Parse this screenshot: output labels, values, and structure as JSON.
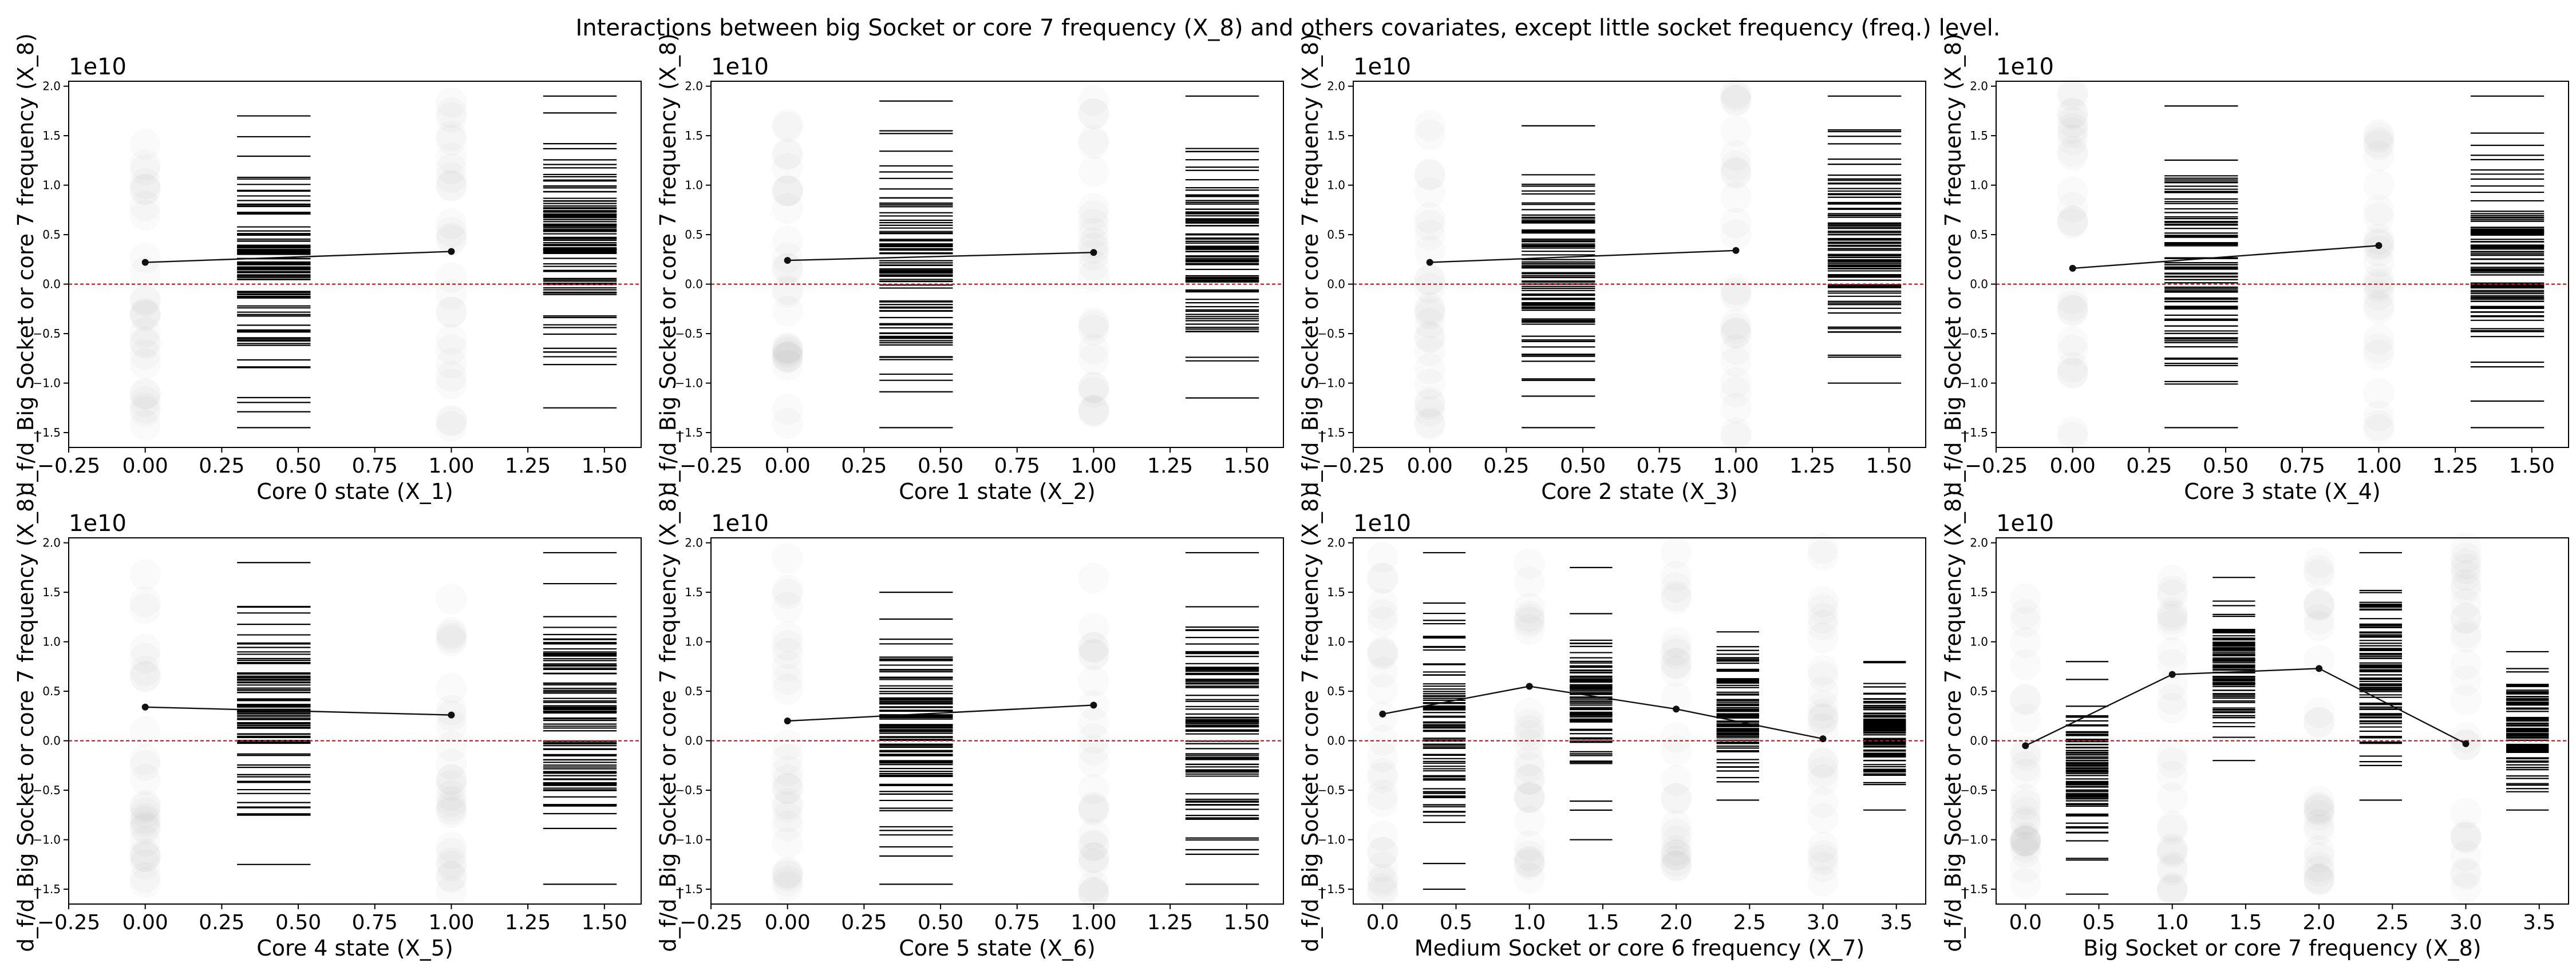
{
  "title": "Interactions between big Socket or core 7 frequency (X_8) and others covariates, except little socket frequency (freq.) level.",
  "chart_data": [
    {
      "type": "scatter",
      "xlabel": "Core 0 state (X_1)",
      "ylabel": "d_f/d_Big Socket or core 7 frequency (X_8)",
      "offset_text": "1e10",
      "xlim": [
        -0.25,
        1.62
      ],
      "ylim": [
        -1.65,
        2.05
      ],
      "xticks": [
        -0.25,
        0.0,
        0.25,
        0.5,
        0.75,
        1.0,
        1.25,
        1.5
      ],
      "xtick_labels": [
        "−0.25",
        "0.00",
        "0.25",
        "0.50",
        "0.75",
        "1.00",
        "1.25",
        "1.50"
      ],
      "yticks": [
        -1.5,
        -1.0,
        -0.5,
        0.0,
        0.5,
        1.0,
        1.5,
        2.0
      ],
      "ytick_labels": [
        "−1.5",
        "−1.0",
        "−0.5",
        "0.0",
        "0.5",
        "1.0",
        "1.5",
        "2.0"
      ],
      "reference_line": 0.0,
      "levels": [
        0,
        1
      ],
      "mean_line": [
        2.2,
        3.3
      ],
      "rug_range": [
        [
          -1.45,
          1.7
        ],
        [
          -1.25,
          1.9
        ]
      ],
      "seed": 11
    },
    {
      "type": "scatter",
      "xlabel": "Core 1 state (X_2)",
      "ylabel": "d_f/d_Big Socket or core 7 frequency (X_8)",
      "offset_text": "1e10",
      "xlim": [
        -0.25,
        1.62
      ],
      "ylim": [
        -1.65,
        2.05
      ],
      "xticks": [
        -0.25,
        0.0,
        0.25,
        0.5,
        0.75,
        1.0,
        1.25,
        1.5
      ],
      "xtick_labels": [
        "−0.25",
        "0.00",
        "0.25",
        "0.50",
        "0.75",
        "1.00",
        "1.25",
        "1.50"
      ],
      "yticks": [
        -1.5,
        -1.0,
        -0.5,
        0.0,
        0.5,
        1.0,
        1.5,
        2.0
      ],
      "ytick_labels": [
        "−1.5",
        "−1.0",
        "−0.5",
        "0.0",
        "0.5",
        "1.0",
        "1.5",
        "2.0"
      ],
      "reference_line": 0.0,
      "levels": [
        0,
        1
      ],
      "mean_line": [
        2.4,
        3.2
      ],
      "rug_range": [
        [
          -1.45,
          1.85
        ],
        [
          -1.15,
          1.9
        ]
      ],
      "seed": 23
    },
    {
      "type": "scatter",
      "xlabel": "Core 2 state (X_3)",
      "ylabel": "d_f/d_Big Socket or core 7 frequency (X_8)",
      "offset_text": "1e10",
      "xlim": [
        -0.25,
        1.62
      ],
      "ylim": [
        -1.65,
        2.05
      ],
      "xticks": [
        -0.25,
        0.0,
        0.25,
        0.5,
        0.75,
        1.0,
        1.25,
        1.5
      ],
      "xtick_labels": [
        "−0.25",
        "0.00",
        "0.25",
        "0.50",
        "0.75",
        "1.00",
        "1.25",
        "1.50"
      ],
      "yticks": [
        -1.5,
        -1.0,
        -0.5,
        0.0,
        0.5,
        1.0,
        1.5,
        2.0
      ],
      "ytick_labels": [
        "−1.5",
        "−1.0",
        "−0.5",
        "0.0",
        "0.5",
        "1.0",
        "1.5",
        "2.0"
      ],
      "reference_line": 0.0,
      "levels": [
        0,
        1
      ],
      "mean_line": [
        2.2,
        3.4
      ],
      "rug_range": [
        [
          -1.45,
          1.6
        ],
        [
          -1.0,
          1.9
        ]
      ],
      "seed": 37
    },
    {
      "type": "scatter",
      "xlabel": "Core 3 state (X_4)",
      "ylabel": "d_f/d_Big Socket or core 7 frequency (X_8)",
      "offset_text": "1e10",
      "xlim": [
        -0.25,
        1.62
      ],
      "ylim": [
        -1.65,
        2.05
      ],
      "xticks": [
        -0.25,
        0.0,
        0.25,
        0.5,
        0.75,
        1.0,
        1.25,
        1.5
      ],
      "xtick_labels": [
        "−0.25",
        "0.00",
        "0.25",
        "0.50",
        "0.75",
        "1.00",
        "1.25",
        "1.50"
      ],
      "yticks": [
        -1.5,
        -1.0,
        -0.5,
        0.0,
        0.5,
        1.0,
        1.5,
        2.0
      ],
      "ytick_labels": [
        "−1.5",
        "−1.0",
        "−0.5",
        "0.0",
        "0.5",
        "1.0",
        "1.5",
        "2.0"
      ],
      "reference_line": 0.0,
      "levels": [
        0,
        1
      ],
      "mean_line": [
        1.6,
        3.9
      ],
      "rug_range": [
        [
          -1.45,
          1.8
        ],
        [
          -1.45,
          1.9
        ]
      ],
      "seed": 41
    },
    {
      "type": "scatter",
      "xlabel": "Core 4 state (X_5)",
      "ylabel": "d_f/d_Big Socket or core 7 frequency (X_8)",
      "offset_text": "1e10",
      "xlim": [
        -0.25,
        1.62
      ],
      "ylim": [
        -1.65,
        2.05
      ],
      "xticks": [
        -0.25,
        0.0,
        0.25,
        0.5,
        0.75,
        1.0,
        1.25,
        1.5
      ],
      "xtick_labels": [
        "−0.25",
        "0.00",
        "0.25",
        "0.50",
        "0.75",
        "1.00",
        "1.25",
        "1.50"
      ],
      "yticks": [
        -1.5,
        -1.0,
        -0.5,
        0.0,
        0.5,
        1.0,
        1.5,
        2.0
      ],
      "ytick_labels": [
        "−1.5",
        "−1.0",
        "−0.5",
        "0.0",
        "0.5",
        "1.0",
        "1.5",
        "2.0"
      ],
      "reference_line": 0.0,
      "levels": [
        0,
        1
      ],
      "mean_line": [
        3.4,
        2.6
      ],
      "rug_range": [
        [
          -1.25,
          1.8
        ],
        [
          -1.45,
          1.9
        ]
      ],
      "seed": 53
    },
    {
      "type": "scatter",
      "xlabel": "Core 5 state (X_6)",
      "ylabel": "d_f/d_Big Socket or core 7 frequency (X_8)",
      "offset_text": "1e10",
      "xlim": [
        -0.25,
        1.62
      ],
      "ylim": [
        -1.65,
        2.05
      ],
      "xticks": [
        -0.25,
        0.0,
        0.25,
        0.5,
        0.75,
        1.0,
        1.25,
        1.5
      ],
      "xtick_labels": [
        "−0.25",
        "0.00",
        "0.25",
        "0.50",
        "0.75",
        "1.00",
        "1.25",
        "1.50"
      ],
      "yticks": [
        -1.5,
        -1.0,
        -0.5,
        0.0,
        0.5,
        1.0,
        1.5,
        2.0
      ],
      "ytick_labels": [
        "−1.5",
        "−1.0",
        "−0.5",
        "0.0",
        "0.5",
        "1.0",
        "1.5",
        "2.0"
      ],
      "reference_line": 0.0,
      "levels": [
        0,
        1
      ],
      "mean_line": [
        2.0,
        3.6
      ],
      "rug_range": [
        [
          -1.45,
          1.5
        ],
        [
          -1.45,
          1.9
        ]
      ],
      "seed": 67
    },
    {
      "type": "scatter",
      "xlabel": "Medium Socket or core 6 frequency (X_7)",
      "ylabel": "d_f/d_Big Socket or core 7 frequency (X_8)",
      "offset_text": "1e10",
      "xlim": [
        -0.2,
        3.7
      ],
      "ylim": [
        -1.65,
        2.05
      ],
      "xticks": [
        0.0,
        0.5,
        1.0,
        1.5,
        2.0,
        2.5,
        3.0,
        3.5
      ],
      "xtick_labels": [
        "0.0",
        "0.5",
        "1.0",
        "1.5",
        "2.0",
        "2.5",
        "3.0",
        "3.5"
      ],
      "yticks": [
        -1.5,
        -1.0,
        -0.5,
        0.0,
        0.5,
        1.0,
        1.5,
        2.0
      ],
      "ytick_labels": [
        "−1.5",
        "−1.0",
        "−0.5",
        "0.0",
        "0.5",
        "1.0",
        "1.5",
        "2.0"
      ],
      "reference_line": 0.0,
      "levels": [
        0,
        1,
        2,
        3
      ],
      "mean_line": [
        2.7,
        5.5,
        3.2,
        0.2
      ],
      "rug_range": [
        [
          -1.5,
          1.9
        ],
        [
          -1.0,
          1.75
        ],
        [
          -0.6,
          1.1
        ],
        [
          -0.7,
          0.8
        ]
      ],
      "seed": 79
    },
    {
      "type": "scatter",
      "xlabel": "Big Socket or core 7 frequency (X_8)",
      "ylabel": "d_f/d_Big Socket or core 7 frequency (X_8)",
      "offset_text": "1e10",
      "xlim": [
        -0.2,
        3.7
      ],
      "ylim": [
        -1.65,
        2.05
      ],
      "xticks": [
        0.0,
        0.5,
        1.0,
        1.5,
        2.0,
        2.5,
        3.0,
        3.5
      ],
      "xtick_labels": [
        "0.0",
        "0.5",
        "1.0",
        "1.5",
        "2.0",
        "2.5",
        "3.0",
        "3.5"
      ],
      "yticks": [
        -1.5,
        -1.0,
        -0.5,
        0.0,
        0.5,
        1.0,
        1.5,
        2.0
      ],
      "ytick_labels": [
        "−1.5",
        "−1.0",
        "−0.5",
        "0.0",
        "0.5",
        "1.0",
        "1.5",
        "2.0"
      ],
      "reference_line": 0.0,
      "levels": [
        0,
        1,
        2,
        3
      ],
      "mean_line": [
        -0.5,
        6.7,
        7.3,
        -0.3
      ],
      "rug_range": [
        [
          -1.55,
          0.8
        ],
        [
          -0.2,
          1.65
        ],
        [
          -0.6,
          1.9
        ],
        [
          -0.7,
          0.9
        ]
      ],
      "seed": 97
    }
  ]
}
